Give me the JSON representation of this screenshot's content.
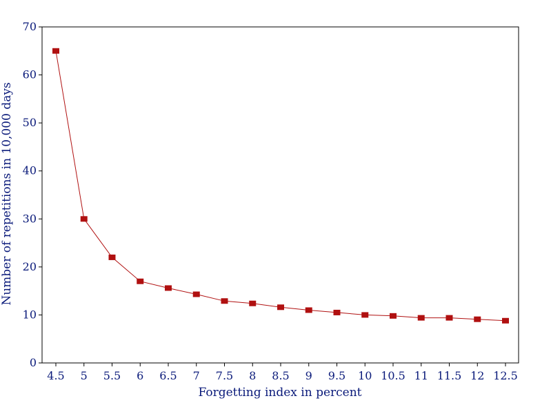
{
  "chart_data": {
    "type": "line",
    "title": "",
    "xlabel": "Forgetting index in percent",
    "ylabel": "Number of repetitions in 10,000 days",
    "x_ticks": [
      "4.5",
      "5",
      "5.5",
      "6",
      "6.5",
      "7",
      "7.5",
      "8",
      "8.5",
      "9",
      "9.5",
      "10",
      "10.5",
      "11",
      "11.5",
      "12",
      "12.5"
    ],
    "y_ticks": [
      "0",
      "10",
      "20",
      "30",
      "40",
      "50",
      "60",
      "70"
    ],
    "ylim": [
      0,
      70
    ],
    "grid": false,
    "series": [
      {
        "x": [
          4.5,
          5,
          5.5,
          6,
          6.5,
          7,
          7.5,
          8,
          8.5,
          9,
          9.5,
          10,
          10.5,
          11,
          11.5,
          12,
          12.5
        ],
        "values": [
          65,
          30,
          22,
          17,
          15.6,
          14.3,
          12.9,
          12.4,
          11.6,
          11.0,
          10.5,
          10.0,
          9.8,
          9.4,
          9.4,
          9.1,
          8.8
        ]
      }
    ],
    "colors": {
      "series": "#b01010",
      "axis_text": "#0a1a7a",
      "frame": "#000000"
    }
  }
}
